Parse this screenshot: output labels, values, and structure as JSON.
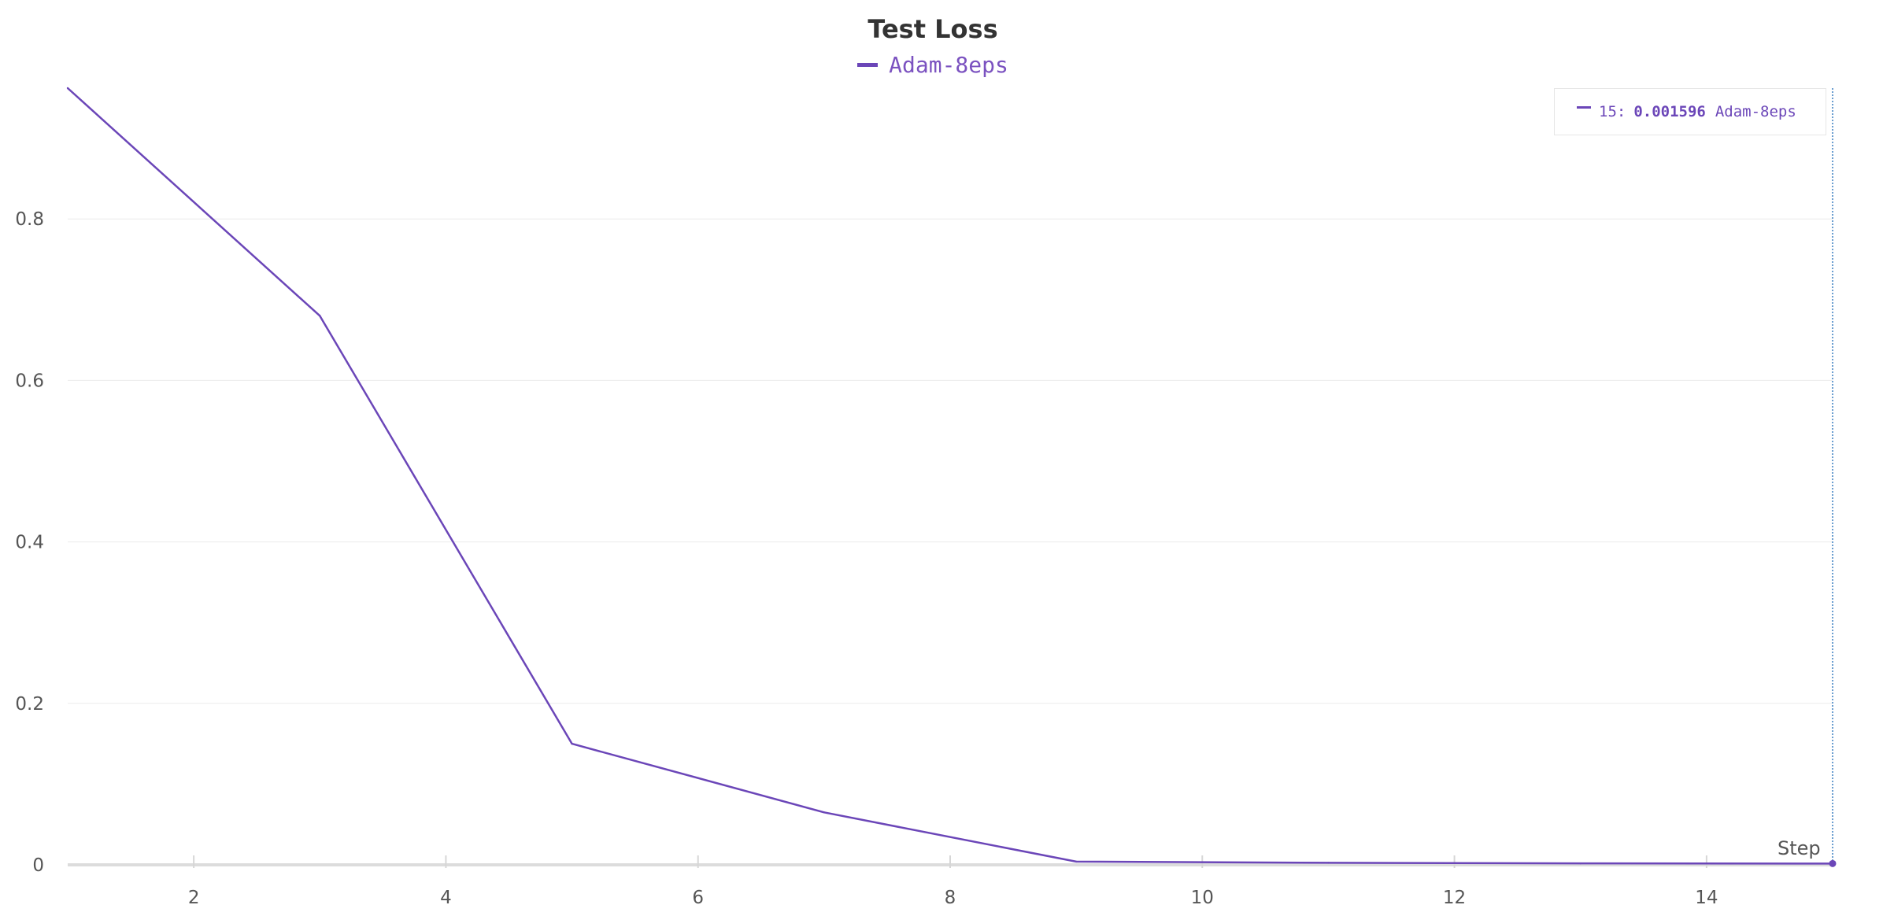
{
  "chart_data": {
    "type": "line",
    "title": "Test Loss",
    "xlabel": "Step",
    "ylabel": "",
    "x": [
      1,
      3,
      5,
      7,
      9,
      11,
      13,
      15
    ],
    "series": [
      {
        "name": "Adam-8eps",
        "color": "#6b46b8",
        "values": [
          0.962,
          0.68,
          0.15,
          0.065,
          0.004,
          0.0025,
          0.0018,
          0.001596
        ]
      }
    ],
    "xlim": [
      1,
      15
    ],
    "ylim": [
      0,
      0.962
    ],
    "xticks": [
      "2",
      "4",
      "6",
      "8",
      "10",
      "12",
      "14"
    ],
    "yticks": [
      "0",
      "0.2",
      "0.4",
      "0.6",
      "0.8"
    ],
    "grid": "horizontal",
    "legend": "top-center",
    "tooltip": {
      "step": "15:",
      "value": "0.001596",
      "series": "Adam-8eps"
    }
  }
}
